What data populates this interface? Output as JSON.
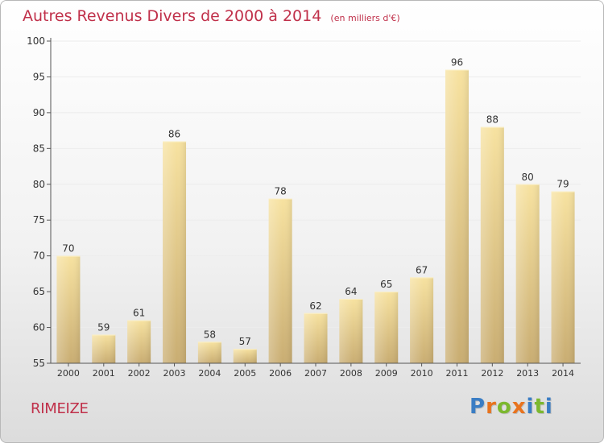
{
  "title": "Autres Revenus Divers de 2000 à 2014",
  "subtitle": "(en milliers d'€)",
  "commune": "RIMEIZE",
  "brand": {
    "text": "Proxiti",
    "letter_colors": [
      "#3a7dc4",
      "#e8731e",
      "#7cb82f",
      "#e8731e",
      "#3a7dc4",
      "#7cb82f",
      "#3a7dc4"
    ]
  },
  "colors": {
    "title": "#c0304a",
    "bar_light": "#f7e2a0",
    "bar_dark": "#c9ad72",
    "axis": "#555555",
    "grid": "#ececec"
  },
  "chart_data": {
    "type": "bar",
    "categories": [
      "2000",
      "2001",
      "2002",
      "2003",
      "2004",
      "2005",
      "2006",
      "2007",
      "2008",
      "2009",
      "2010",
      "2011",
      "2012",
      "2013",
      "2014"
    ],
    "values": [
      70,
      59,
      61,
      86,
      58,
      57,
      78,
      62,
      64,
      65,
      67,
      96,
      88,
      80,
      79
    ],
    "ylim": [
      55,
      100
    ],
    "yticks": [
      55,
      60,
      65,
      70,
      75,
      80,
      85,
      90,
      95,
      100
    ],
    "grid": "horizontal",
    "legend": "none"
  }
}
